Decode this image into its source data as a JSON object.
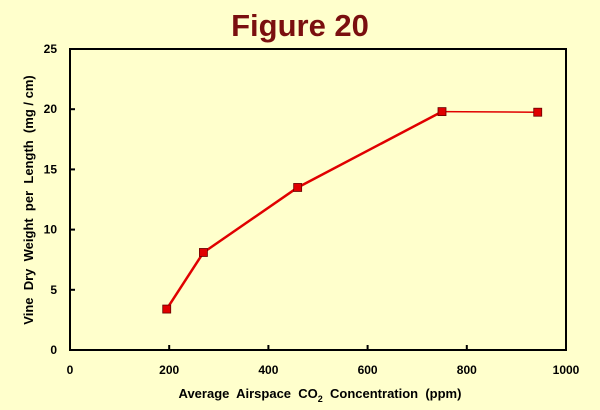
{
  "chart_data": {
    "type": "line",
    "title": "Figure 20",
    "xlabel": "Average Airspace CO2 Concentration (ppm)",
    "xlabel_parts": {
      "before": "Average  Airspace  CO",
      "sub": "2",
      "after": "  Concentration  (ppm)"
    },
    "ylabel": "Vine  Dry  Weight  per  Length  (mg / cm)",
    "xlim": [
      0,
      1000
    ],
    "ylim": [
      0,
      25
    ],
    "xticks": [
      0,
      200,
      400,
      600,
      800,
      1000
    ],
    "yticks": [
      0,
      5,
      10,
      15,
      20,
      25
    ],
    "grid": false,
    "series": [
      {
        "name": "Vine dry weight",
        "color": "#e00000",
        "marker": "square",
        "x": [
          195,
          269,
          459,
          750,
          943
        ],
        "y": [
          3.4,
          8.1,
          13.5,
          19.8,
          19.75
        ]
      }
    ]
  }
}
